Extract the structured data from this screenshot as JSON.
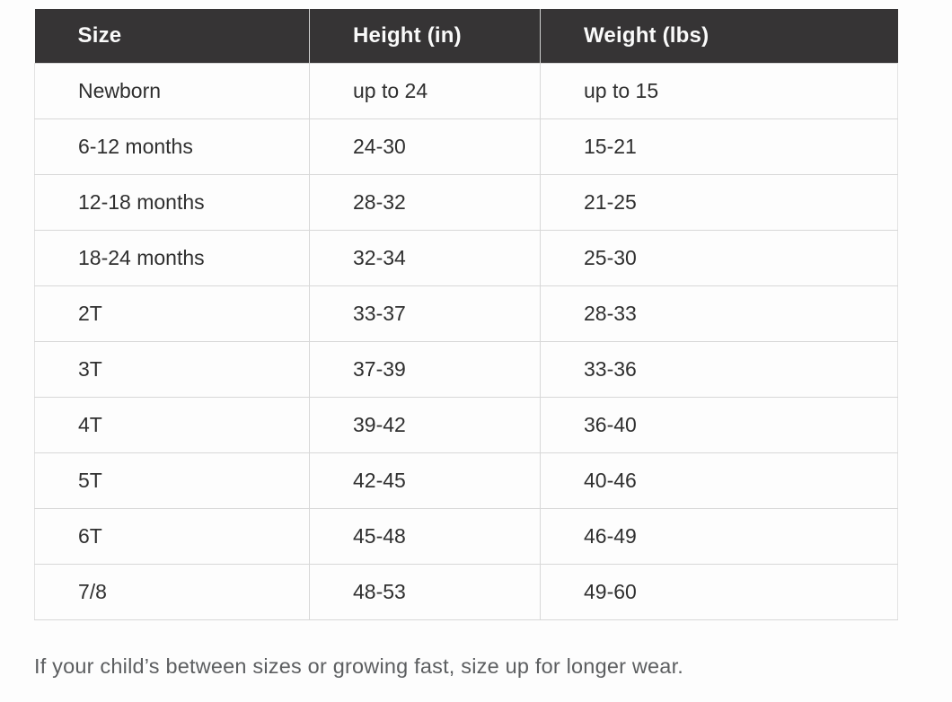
{
  "size_chart": {
    "columns": [
      {
        "label": "Size"
      },
      {
        "label": "Height (in)"
      },
      {
        "label": "Weight (lbs)"
      }
    ],
    "rows": [
      {
        "size": "Newborn",
        "height": "up to 24",
        "weight": "up to 15"
      },
      {
        "size": "6-12 months",
        "height": "24-30",
        "weight": "15-21"
      },
      {
        "size": "12-18 months",
        "height": "28-32",
        "weight": "21-25"
      },
      {
        "size": "18-24 months",
        "height": "32-34",
        "weight": "25-30"
      },
      {
        "size": "2T",
        "height": "33-37",
        "weight": "28-33"
      },
      {
        "size": "3T",
        "height": "37-39",
        "weight": "33-36"
      },
      {
        "size": "4T",
        "height": "39-42",
        "weight": "36-40"
      },
      {
        "size": "5T",
        "height": "42-45",
        "weight": "40-46"
      },
      {
        "size": "6T",
        "height": "45-48",
        "weight": "46-49"
      },
      {
        "size": "7/8",
        "height": "48-53",
        "weight": "49-60"
      }
    ]
  },
  "footer": {
    "note": "If your child’s between sizes or growing fast, size up for longer wear."
  },
  "colors": {
    "header_bg": "#363435",
    "header_text": "#fafafa",
    "body_text": "#2f2f2f",
    "border": "#d8d8d8",
    "note_text": "#5c5e60"
  }
}
